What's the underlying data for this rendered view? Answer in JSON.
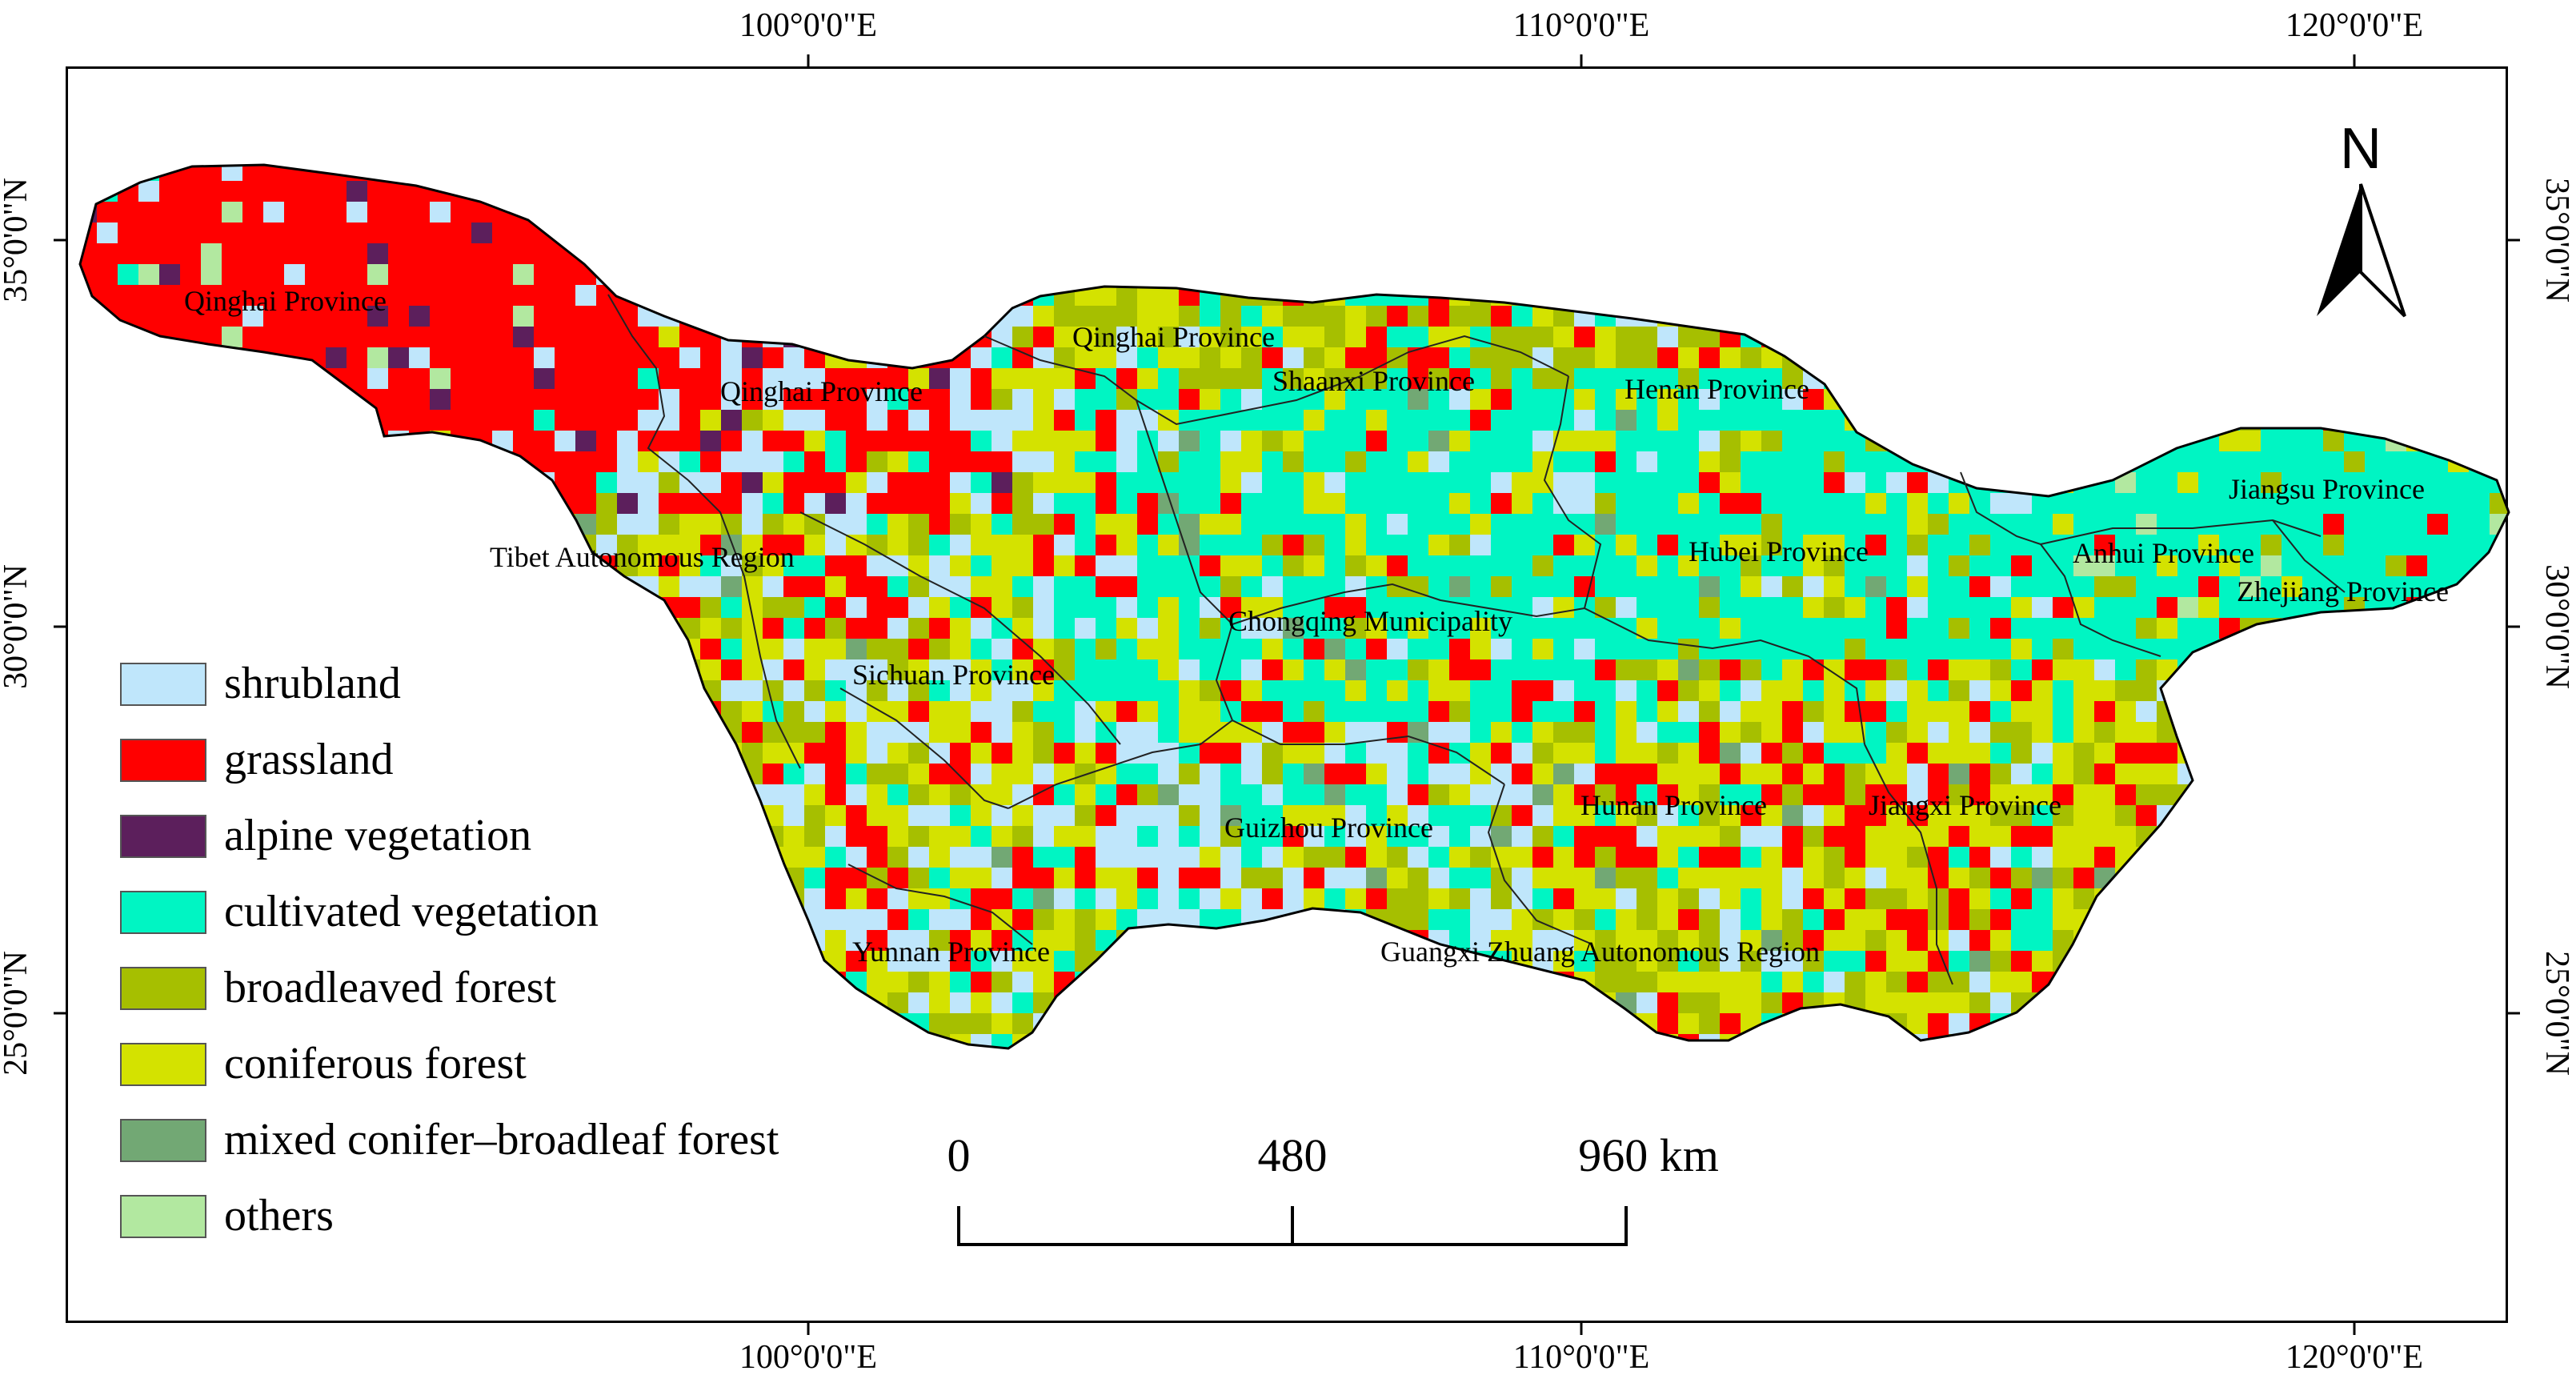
{
  "map": {
    "longitude_labels": [
      "100°0'0\"E",
      "110°0'0\"E",
      "120°0'0\"E"
    ],
    "latitude_labels": [
      "35°0'0\"N",
      "30°0'0\"N",
      "25°0'0\"N"
    ],
    "north_arrow": {
      "label": "N",
      "icon": "north-arrow-icon"
    },
    "scale_bar": {
      "labels": [
        "0",
        "480",
        "960 km"
      ]
    },
    "provinces": [
      "Qinghai Province",
      "Qinghai Province",
      "Qinghai Province",
      "Shaanxi Province",
      "Henan Province",
      "Tibet Autonomous Region",
      "Jiangsu Province",
      "Anhui Province",
      "Zhejiang Province",
      "Hubei Province",
      "Chongqing Municipality",
      "Sichuan Province",
      "Guizhou Province",
      "Hunan Province",
      "Jiangxi Province",
      "Yunnan Province",
      "Guangxi Zhuang Autonomous Region"
    ],
    "legend": [
      {
        "label": "shrubland",
        "color": "#bfe6fb"
      },
      {
        "label": "grassland",
        "color": "#ff0000"
      },
      {
        "label": "alpine vegetation",
        "color": "#5c1f5c"
      },
      {
        "label": "cultivated vegetation",
        "color": "#00f5c3"
      },
      {
        "label": "broadleaved forest",
        "color": "#a6bf00"
      },
      {
        "label": "coniferous forest",
        "color": "#d4e200"
      },
      {
        "label": "mixed conifer–broadleaf forest",
        "color": "#72a874"
      },
      {
        "label": "others",
        "color": "#b2e8a0"
      }
    ]
  }
}
